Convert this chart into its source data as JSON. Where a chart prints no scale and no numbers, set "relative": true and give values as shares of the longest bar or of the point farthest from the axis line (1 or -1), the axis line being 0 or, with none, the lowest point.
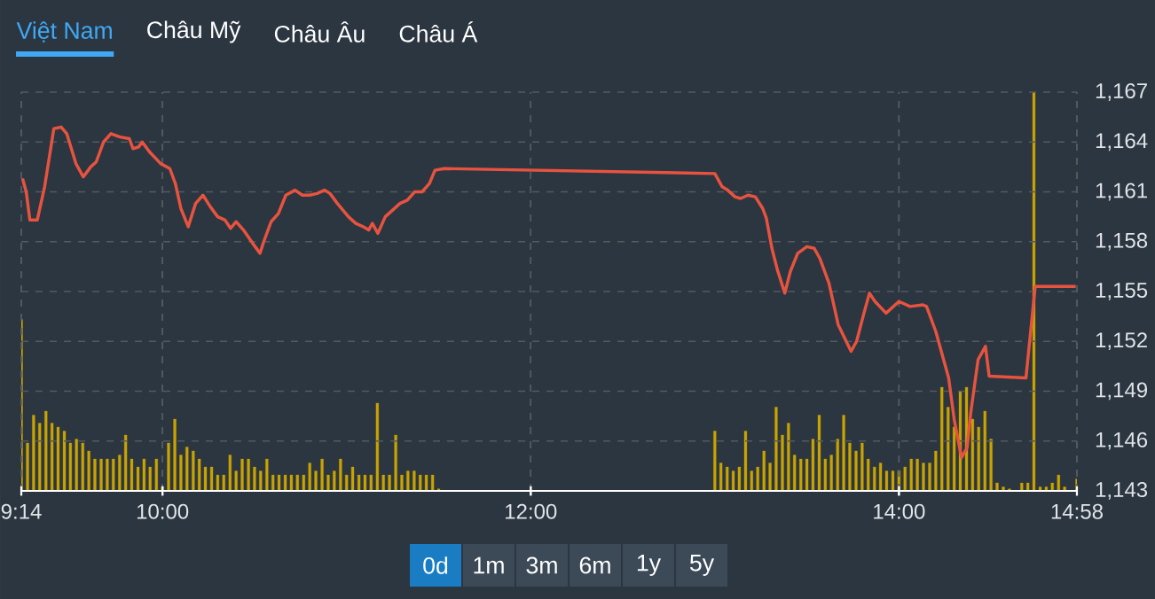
{
  "chart_data": [
    {
      "type": "line",
      "annotations": [
        "Việt Nam",
        "Châu Mỹ",
        "Châu Âu",
        "Châu Á",
        "0d",
        "1m",
        "3m",
        "6m",
        "1y",
        "5y"
      ],
      "xlim": [
        9.2333,
        14.9667
      ],
      "xticks": [
        {
          "value": 9.2333,
          "label": "9:14"
        },
        {
          "value": 10,
          "label": "10:00"
        },
        {
          "value": 12,
          "label": "12:00"
        },
        {
          "value": 14,
          "label": "14:00"
        },
        {
          "value": 14.9667,
          "label": "14:58"
        }
      ],
      "ylim": [
        1143,
        1167
      ],
      "yticks": [
        {
          "value": 1143,
          "label": "1,143"
        },
        {
          "value": 1146,
          "label": "1,146"
        },
        {
          "value": 1149,
          "label": "1,149"
        },
        {
          "value": 1152,
          "label": "1,152"
        },
        {
          "value": 1155,
          "label": "1,155"
        },
        {
          "value": 1158,
          "label": "1,158"
        },
        {
          "value": 1161,
          "label": "1,161"
        },
        {
          "value": 1164,
          "label": "1,164"
        },
        {
          "value": 1167,
          "label": "1,167"
        }
      ],
      "grid": true,
      "series": [
        {
          "color": "#e8533f",
          "x": [
            9.24,
            9.26,
            9.28,
            9.32,
            9.36,
            9.41,
            9.45,
            9.48,
            9.53,
            9.57,
            9.61,
            9.64,
            9.68,
            9.72,
            9.77,
            9.82,
            9.84,
            9.87,
            9.89,
            9.93,
            9.99,
            10.04,
            10.07,
            10.1,
            10.14,
            10.18,
            10.22,
            10.26,
            10.3,
            10.34,
            10.37,
            10.4,
            10.44,
            10.49,
            10.53,
            10.55,
            10.59,
            10.63,
            10.67,
            10.72,
            10.76,
            10.8,
            10.84,
            10.88,
            10.91,
            10.95,
            11.01,
            11.05,
            11.09,
            11.12,
            11.14,
            11.17,
            11.21,
            11.25,
            11.29,
            11.33,
            11.37,
            11.41,
            11.45,
            11.48,
            11.53,
            13,
            13.04,
            13.07,
            13.11,
            13.14,
            13.18,
            13.22,
            13.26,
            13.28,
            13.31,
            13.34,
            13.38,
            13.41,
            13.45,
            13.5,
            13.54,
            13.57,
            13.62,
            13.67,
            13.74,
            13.77,
            13.81,
            13.84,
            13.87,
            13.93,
            14,
            14.06,
            14.13,
            14.15,
            14.2,
            14.27,
            14.3,
            14.34,
            14.37,
            14.39,
            14.43,
            14.47,
            14.49,
            14.69,
            14.74,
            14.96
          ],
          "values": [
            1161.8,
            1161.0,
            1159.3,
            1159.3,
            1161.3,
            1164.8,
            1164.9,
            1164.5,
            1162.7,
            1161.9,
            1162.5,
            1162.8,
            1164.0,
            1164.5,
            1164.3,
            1164.2,
            1163.6,
            1163.7,
            1164.0,
            1163.4,
            1162.7,
            1162.4,
            1161.5,
            1160.0,
            1158.9,
            1160.3,
            1160.8,
            1160.1,
            1159.5,
            1159.3,
            1158.8,
            1159.2,
            1158.7,
            1157.9,
            1157.3,
            1158.0,
            1159.2,
            1159.7,
            1160.8,
            1161.1,
            1160.8,
            1160.8,
            1160.9,
            1161.1,
            1160.9,
            1160.3,
            1159.5,
            1159.1,
            1158.9,
            1158.7,
            1159.1,
            1158.5,
            1159.5,
            1159.9,
            1160.3,
            1160.5,
            1161.0,
            1161.0,
            1161.5,
            1162.3,
            1162.4,
            1162.1,
            1161.3,
            1161.1,
            1160.7,
            1160.6,
            1160.8,
            1160.7,
            1160.0,
            1159.4,
            1157.6,
            1156.3,
            1154.9,
            1156.2,
            1157.3,
            1157.7,
            1157.6,
            1157.0,
            1155.5,
            1153.0,
            1151.4,
            1152.0,
            1153.7,
            1154.9,
            1154.4,
            1153.7,
            1154.4,
            1154.1,
            1154.2,
            1154.1,
            1152.6,
            1149.8,
            1147.3,
            1145.0,
            1145.6,
            1147.7,
            1150.9,
            1151.7,
            1149.9,
            1149.8,
            1155.3,
            1155.3
          ]
        }
      ]
    },
    {
      "type": "bar",
      "relative": true,
      "tick_labels": false,
      "xlim": [
        9.2333,
        14.9667
      ],
      "grid": "x",
      "xticks": [
        {
          "value": 9.2333,
          "label": null
        },
        {
          "value": 10,
          "label": null
        },
        {
          "value": 12,
          "label": null
        },
        {
          "value": 14,
          "label": null
        },
        {
          "value": 14.9667,
          "label": null
        }
      ],
      "series": [
        {
          "color": "#c9a400",
          "x": [
            9.2333,
            9.267,
            9.3,
            9.333,
            9.367,
            9.4,
            9.433,
            9.467,
            9.5,
            9.533,
            9.567,
            9.6,
            9.633,
            9.667,
            9.7,
            9.733,
            9.767,
            9.8,
            9.833,
            9.867,
            9.9,
            9.933,
            9.967,
            10,
            10.033,
            10.067,
            10.1,
            10.133,
            10.167,
            10.2,
            10.233,
            10.267,
            10.3,
            10.333,
            10.367,
            10.4,
            10.433,
            10.467,
            10.5,
            10.533,
            10.567,
            10.6,
            10.633,
            10.667,
            10.7,
            10.733,
            10.767,
            10.8,
            10.833,
            10.867,
            10.9,
            10.933,
            10.967,
            11,
            11.033,
            11.067,
            11.1,
            11.133,
            11.167,
            11.2,
            11.233,
            11.267,
            11.3,
            11.333,
            11.367,
            11.4,
            11.433,
            11.467,
            11.5,
            13,
            13.033,
            13.067,
            13.1,
            13.133,
            13.167,
            13.2,
            13.233,
            13.267,
            13.3,
            13.333,
            13.367,
            13.4,
            13.433,
            13.467,
            13.5,
            13.533,
            13.567,
            13.6,
            13.633,
            13.667,
            13.7,
            13.733,
            13.767,
            13.8,
            13.833,
            13.867,
            13.9,
            13.933,
            13.967,
            14,
            14.033,
            14.067,
            14.1,
            14.133,
            14.167,
            14.2,
            14.233,
            14.267,
            14.3,
            14.333,
            14.367,
            14.4,
            14.433,
            14.467,
            14.5,
            14.533,
            14.567,
            14.6,
            14.633,
            14.667,
            14.7,
            14.733,
            14.767,
            14.8,
            14.833,
            14.867,
            14.9,
            14.933,
            14.9667
          ],
          "values": [
            0.43,
            0.12,
            0.19,
            0.17,
            0.2,
            0.17,
            0.16,
            0.15,
            0.12,
            0.13,
            0.12,
            0.1,
            0.08,
            0.08,
            0.08,
            0.08,
            0.09,
            0.14,
            0.08,
            0.06,
            0.08,
            0.06,
            0.08,
            0.01,
            0.12,
            0.18,
            0.09,
            0.11,
            0.1,
            0.08,
            0.06,
            0.06,
            0.04,
            0.04,
            0.09,
            0.05,
            0.08,
            0.08,
            0.06,
            0.05,
            0.08,
            0.04,
            0.04,
            0.04,
            0.04,
            0.04,
            0.04,
            0.07,
            0.05,
            0.08,
            0.04,
            0.05,
            0.08,
            0.04,
            0.06,
            0.04,
            0.04,
            0.04,
            0.22,
            0.04,
            0.04,
            0.14,
            0.04,
            0.05,
            0.05,
            0.04,
            0.04,
            0.04,
            0.005,
            0.15,
            0.07,
            0.06,
            0.05,
            0.06,
            0.15,
            0.05,
            0.06,
            0.1,
            0.07,
            0.21,
            0.14,
            0.17,
            0.09,
            0.08,
            0.08,
            0.13,
            0.19,
            0.08,
            0.09,
            0.13,
            0.19,
            0.12,
            0.1,
            0.12,
            0.08,
            0.06,
            0.07,
            0.05,
            0.05,
            0.05,
            0.06,
            0.08,
            0.08,
            0.07,
            0.07,
            0.1,
            0.26,
            0.21,
            0.16,
            0.25,
            0.26,
            0.18,
            0.16,
            0.2,
            0.13,
            0.02,
            0.01,
            0.005,
            null,
            0.02,
            0.02,
            1,
            0.01,
            0.01,
            0.02,
            0.04,
            0.01,
            null,
            0.03
          ]
        }
      ]
    }
  ]
}
